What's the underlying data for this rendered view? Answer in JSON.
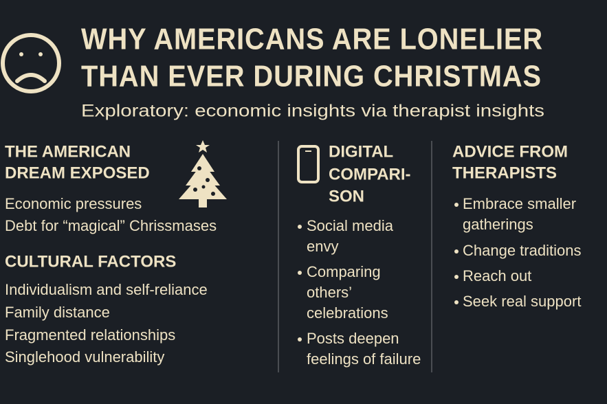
{
  "header": {
    "title_lines": [
      "WHY AMERICANS ARE LONELIER",
      "THAN EVER DURING CHRISTMAS"
    ],
    "subtitle": "Exploratory: economic insights via therapist insights"
  },
  "columns": [
    {
      "sections": [
        {
          "heading_lines": [
            "THE AMERICAN",
            "DREAM EXPOSED"
          ],
          "items": [
            [
              "Economic pressures"
            ],
            [
              "Debt for “magical” Chrissmases"
            ]
          ]
        },
        {
          "heading_lines": [
            "CULTURAL FACTORS"
          ],
          "items": [
            [
              "Individualism and self-reliance"
            ],
            [
              "Family distance"
            ],
            [
              "Fragmented relationships"
            ],
            [
              "Singlehood vulnerability"
            ]
          ]
        }
      ]
    },
    {
      "sections": [
        {
          "heading_lines": [
            "DIGITAL",
            "COMPARI-",
            "SON"
          ],
          "items": [
            [
              "Social media",
              "envy"
            ],
            [
              "Comparing",
              "others’",
              "celebrations"
            ],
            [
              "Posts deepen",
              "feelings of failure"
            ]
          ]
        }
      ]
    },
    {
      "sections": [
        {
          "heading_lines": [
            "ADVICE FROM",
            "THERAPISTS"
          ],
          "items": [
            [
              "Embrace smaller",
              "gatherings"
            ],
            [
              "Change traditions"
            ],
            [
              "Reach out"
            ],
            [
              "Seek real support"
            ]
          ]
        }
      ]
    }
  ]
}
